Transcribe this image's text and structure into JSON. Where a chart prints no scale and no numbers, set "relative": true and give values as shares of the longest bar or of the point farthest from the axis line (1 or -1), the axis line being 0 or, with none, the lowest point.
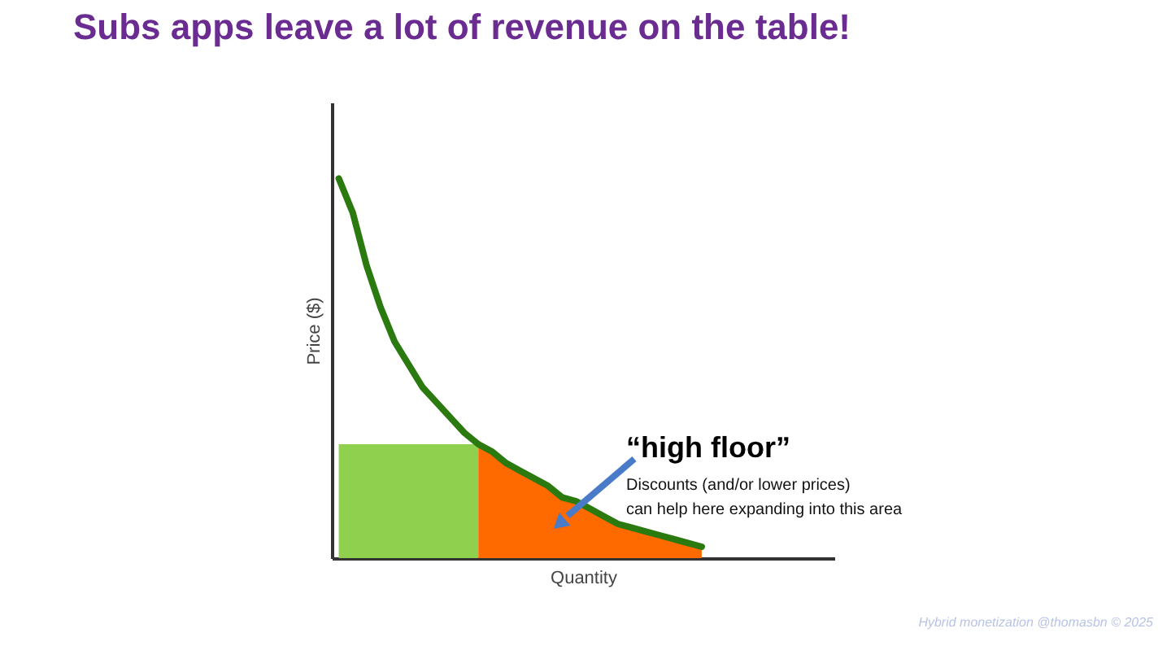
{
  "chart_data": {
    "type": "line",
    "title": "Subs apps leave a lot of revenue on the table!",
    "xlabel": "Quantity",
    "ylabel": "Price ($)",
    "relative": true,
    "tick_labels": false,
    "grid": false,
    "marker": "none",
    "line_style": "solid",
    "annotations": [
      "“high floor”",
      "Discounts (and/or lower prices)",
      "can help here expanding into this area",
      "Hybrid monetization @thomasbn © 2025"
    ],
    "categories": [
      null,
      null,
      null,
      null,
      null,
      null,
      null,
      null,
      null,
      null,
      null,
      null,
      null,
      null,
      null,
      null,
      null,
      null,
      null,
      null,
      null,
      null,
      null,
      null,
      null,
      null,
      null,
      null,
      null,
      null,
      null,
      null,
      null,
      null,
      null,
      null
    ],
    "series": [
      {
        "type": "area",
        "color": "#8fd14f",
        "values": [
          0.3,
          0.3,
          0.3,
          0.3,
          0.3,
          0.3,
          0.3,
          0.3,
          0.3,
          0.3,
          0.3,
          null,
          null,
          null,
          null,
          null,
          null,
          null,
          null,
          null,
          null,
          null,
          null,
          null,
          null,
          null,
          null,
          null,
          null,
          null,
          null,
          null,
          null,
          null,
          null,
          null
        ]
      },
      {
        "type": "area",
        "color": "#ff6a00",
        "values": [
          null,
          null,
          null,
          null,
          null,
          null,
          null,
          null,
          null,
          null,
          0.3,
          0.28,
          0.25,
          0.23,
          0.21,
          0.19,
          0.16,
          0.15,
          0.13,
          0.11,
          0.09,
          0.08,
          0.07,
          0.06,
          0.05,
          0.04,
          0.03,
          null,
          null,
          null,
          null,
          null,
          null,
          null,
          null,
          null
        ]
      },
      {
        "color": "#2a7a10",
        "values": [
          1.0,
          0.91,
          0.77,
          0.66,
          0.57,
          0.51,
          0.45,
          0.41,
          0.37,
          0.33,
          0.3,
          0.28,
          0.25,
          0.23,
          0.21,
          0.19,
          0.16,
          0.15,
          0.13,
          0.11,
          0.09,
          0.08,
          0.07,
          0.06,
          0.05,
          0.04,
          0.03,
          null,
          null,
          null,
          null,
          null,
          null,
          null,
          null,
          null
        ]
      }
    ]
  }
}
